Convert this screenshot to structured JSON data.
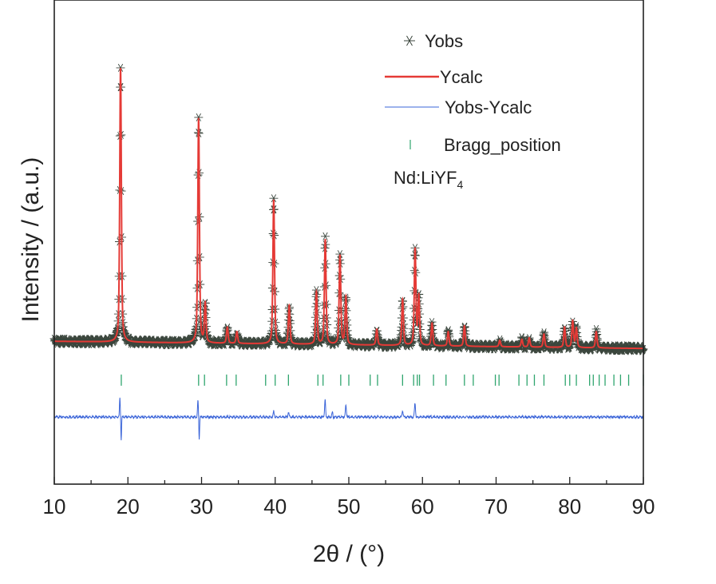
{
  "chart_data": {
    "type": "line",
    "xlabel": "2θ / (°)",
    "ylabel": "Intensity / (a.u.)",
    "xlim": [
      10,
      90
    ],
    "ylim": [
      0,
      100
    ],
    "xticks": [
      10,
      20,
      30,
      40,
      50,
      60,
      70,
      80,
      90
    ],
    "yticks_shown": false,
    "grid": false,
    "legend_position": "top-right",
    "annotation": "Nd:LiYF",
    "annotation_subscript": "4",
    "colors": {
      "yobs": "#3b463d",
      "ycalc": "#e53a36",
      "diff": "#3a64d8",
      "bragg": "#2fa56e"
    },
    "legend": [
      {
        "key": "yobs",
        "label": "Yobs",
        "marker": "asterisk"
      },
      {
        "key": "ycalc",
        "label": "Ycalc",
        "marker": "line"
      },
      {
        "key": "diff",
        "label": "Yobs-Ycalc",
        "marker": "line"
      },
      {
        "key": "bragg",
        "label": "Bragg_position",
        "marker": "vertical-tick"
      }
    ],
    "background": {
      "start": [
        10,
        29.8
      ],
      "end": [
        90,
        28.3
      ]
    },
    "peaks": [
      [
        19.0,
        86.8
      ],
      [
        29.6,
        76.3
      ],
      [
        30.5,
        37.5
      ],
      [
        33.5,
        32.7
      ],
      [
        34.8,
        31.8
      ],
      [
        39.8,
        59.3
      ],
      [
        41.9,
        37.2
      ],
      [
        45.6,
        40.0
      ],
      [
        46.8,
        51.0
      ],
      [
        48.8,
        47.7
      ],
      [
        49.6,
        39.0
      ],
      [
        53.8,
        32.3
      ],
      [
        57.3,
        38.5
      ],
      [
        59.0,
        49.0
      ],
      [
        59.5,
        39.0
      ],
      [
        61.3,
        33.5
      ],
      [
        63.5,
        31.8
      ],
      [
        65.7,
        33.0
      ],
      [
        70.5,
        30.0
      ],
      [
        73.5,
        30.2
      ],
      [
        74.5,
        30.5
      ],
      [
        76.5,
        31.3
      ],
      [
        79.3,
        32.7
      ],
      [
        80.4,
        34.0
      ],
      [
        80.9,
        32.5
      ],
      [
        83.6,
        31.8
      ]
    ],
    "bragg_level": 21.7,
    "bragg_positions": [
      19.1,
      29.6,
      30.4,
      33.4,
      34.7,
      38.7,
      40.0,
      41.8,
      45.8,
      46.5,
      48.9,
      50.0,
      52.9,
      53.9,
      57.3,
      58.8,
      59.3,
      59.6,
      61.5,
      63.2,
      65.7,
      66.9,
      69.9,
      70.4,
      73.1,
      74.2,
      75.2,
      76.5,
      79.4,
      80.0,
      80.9,
      82.7,
      83.2,
      84.0,
      84.8,
      86.0,
      86.9,
      88.0,
      90.0
    ],
    "diff_offset": 14.0,
    "diff_features": [
      [
        19.0,
        1.5,
        -5.5
      ],
      [
        29.6,
        1.0,
        -5.0
      ],
      [
        39.8,
        1.2,
        0
      ],
      [
        41.8,
        1.0,
        0
      ],
      [
        46.8,
        3.6,
        -1.0
      ],
      [
        47.8,
        1.0,
        -0.5
      ],
      [
        49.6,
        2.4,
        0
      ],
      [
        57.3,
        1.3,
        0
      ],
      [
        59.0,
        3.0,
        -0.5
      ]
    ]
  }
}
